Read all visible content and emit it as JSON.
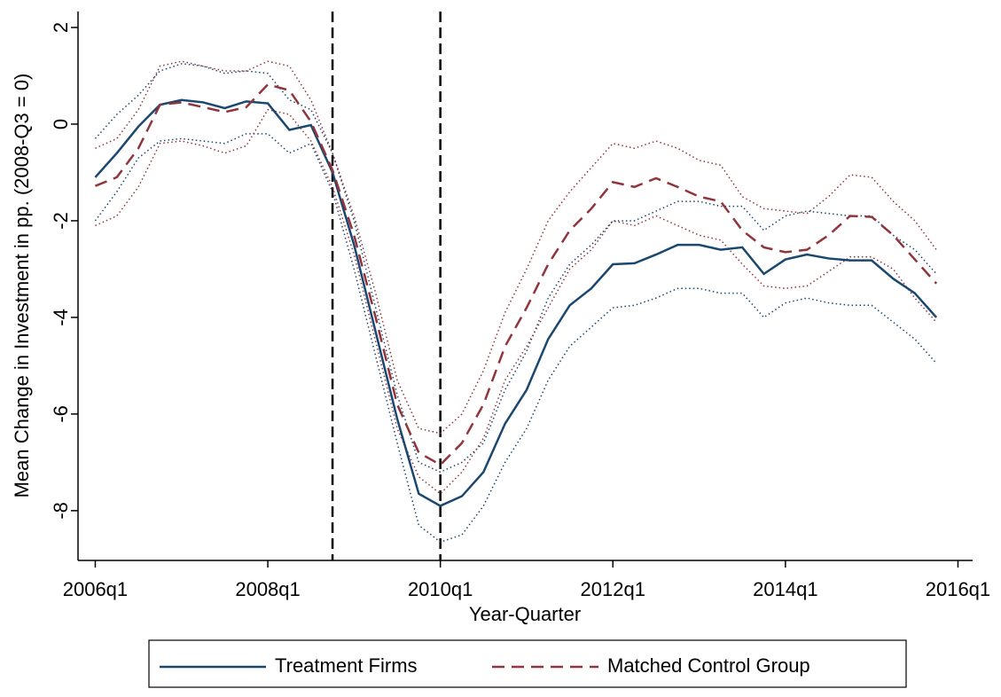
{
  "chart_data": {
    "type": "line",
    "x_label": "Year-Quarter",
    "y_label": "Mean Change in Investment in pp. (2008-Q3 = 0)",
    "x": [
      2006,
      2006.25,
      2006.5,
      2006.75,
      2007,
      2007.25,
      2007.5,
      2007.75,
      2008,
      2008.25,
      2008.5,
      2008.75,
      2009,
      2009.25,
      2009.5,
      2009.75,
      2010,
      2010.25,
      2010.5,
      2010.75,
      2011,
      2011.25,
      2011.5,
      2011.75,
      2012,
      2012.25,
      2012.5,
      2012.75,
      2013,
      2013.25,
      2013.5,
      2013.75,
      2014,
      2014.25,
      2014.5,
      2014.75,
      2015,
      2015.25,
      2015.5,
      2015.75
    ],
    "series": [
      {
        "name": "Treatment Firms",
        "color": "#1a476f",
        "line_style": "solid",
        "values": [
          -1.1,
          -0.6,
          -0.05,
          0.4,
          0.5,
          0.45,
          0.33,
          0.47,
          0.43,
          -0.12,
          -0.02,
          -1.0,
          -2.5,
          -4.3,
          -6.1,
          -7.65,
          -7.9,
          -7.7,
          -7.2,
          -6.2,
          -5.5,
          -4.45,
          -3.75,
          -3.4,
          -2.9,
          -2.88,
          -2.7,
          -2.5,
          -2.5,
          -2.6,
          -2.55,
          -3.1,
          -2.8,
          -2.7,
          -2.78,
          -2.82,
          -2.82,
          -3.2,
          -3.5,
          -4.0
        ],
        "upper": [
          -0.3,
          0.2,
          0.6,
          1.1,
          1.25,
          1.2,
          1.05,
          1.1,
          1.05,
          0.5,
          0.3,
          -0.6,
          -2.0,
          -3.8,
          -5.6,
          -7.0,
          -7.2,
          -7.0,
          -6.6,
          -5.5,
          -4.7,
          -3.6,
          -2.9,
          -2.5,
          -2.0,
          -2.0,
          -1.8,
          -1.6,
          -1.6,
          -1.7,
          -1.7,
          -2.2,
          -1.9,
          -1.8,
          -1.85,
          -1.9,
          -1.9,
          -2.3,
          -2.6,
          -3.1
        ],
        "lower": [
          -2.0,
          -1.4,
          -0.7,
          -0.35,
          -0.3,
          -0.35,
          -0.4,
          -0.2,
          -0.2,
          -0.6,
          -0.4,
          -1.4,
          -3.0,
          -4.8,
          -6.6,
          -8.3,
          -8.65,
          -8.5,
          -7.9,
          -7.0,
          -6.3,
          -5.3,
          -4.6,
          -4.2,
          -3.8,
          -3.75,
          -3.6,
          -3.4,
          -3.4,
          -3.5,
          -3.5,
          -4.0,
          -3.7,
          -3.6,
          -3.7,
          -3.75,
          -3.75,
          -4.1,
          -4.45,
          -4.95
        ]
      },
      {
        "name": "Matched Control Group",
        "color": "#90353b",
        "line_style": "dashed",
        "values": [
          -1.28,
          -1.1,
          -0.5,
          0.4,
          0.45,
          0.35,
          0.25,
          0.35,
          0.82,
          0.7,
          0.05,
          -0.95,
          -2.3,
          -4.0,
          -5.8,
          -6.8,
          -7.05,
          -6.6,
          -5.8,
          -4.6,
          -3.8,
          -2.9,
          -2.2,
          -1.75,
          -1.2,
          -1.3,
          -1.12,
          -1.3,
          -1.5,
          -1.6,
          -2.2,
          -2.55,
          -2.65,
          -2.6,
          -2.3,
          -1.9,
          -1.92,
          -2.3,
          -2.8,
          -3.3
        ],
        "upper": [
          -0.5,
          -0.3,
          0.3,
          1.2,
          1.3,
          1.2,
          1.1,
          1.1,
          1.3,
          1.2,
          0.5,
          -0.6,
          -1.9,
          -3.5,
          -5.3,
          -6.3,
          -6.4,
          -6.0,
          -5.1,
          -3.9,
          -3.0,
          -2.0,
          -1.4,
          -0.9,
          -0.4,
          -0.5,
          -0.35,
          -0.5,
          -0.75,
          -0.85,
          -1.5,
          -1.75,
          -1.8,
          -1.85,
          -1.5,
          -1.05,
          -1.1,
          -1.6,
          -2.0,
          -2.6
        ],
        "lower": [
          -2.1,
          -1.9,
          -1.3,
          -0.4,
          -0.35,
          -0.45,
          -0.6,
          -0.45,
          0.3,
          0.2,
          -0.35,
          -1.3,
          -2.7,
          -4.5,
          -6.3,
          -7.3,
          -7.65,
          -7.2,
          -6.5,
          -5.3,
          -4.6,
          -3.8,
          -3.0,
          -2.6,
          -2.0,
          -2.1,
          -1.9,
          -2.1,
          -2.3,
          -2.4,
          -2.9,
          -3.35,
          -3.4,
          -3.35,
          -3.05,
          -2.75,
          -2.75,
          -3.0,
          -3.6,
          -4.1
        ]
      }
    ],
    "vlines": [
      2008.75,
      2010
    ],
    "xlim": [
      2005.8,
      2016.17
    ],
    "xticks": [
      {
        "value": 2006,
        "label": "2006q1"
      },
      {
        "value": 2008,
        "label": "2008q1"
      },
      {
        "value": 2010,
        "label": "2010q1"
      },
      {
        "value": 2012,
        "label": "2012q1"
      },
      {
        "value": 2014,
        "label": "2014q1"
      },
      {
        "value": 2016,
        "label": "2016q1"
      }
    ],
    "ylim": [
      -9.03,
      2.33
    ],
    "yticks": [
      2,
      0,
      -2,
      -4,
      -6,
      -8
    ],
    "grid": false,
    "legend": "bottom"
  }
}
